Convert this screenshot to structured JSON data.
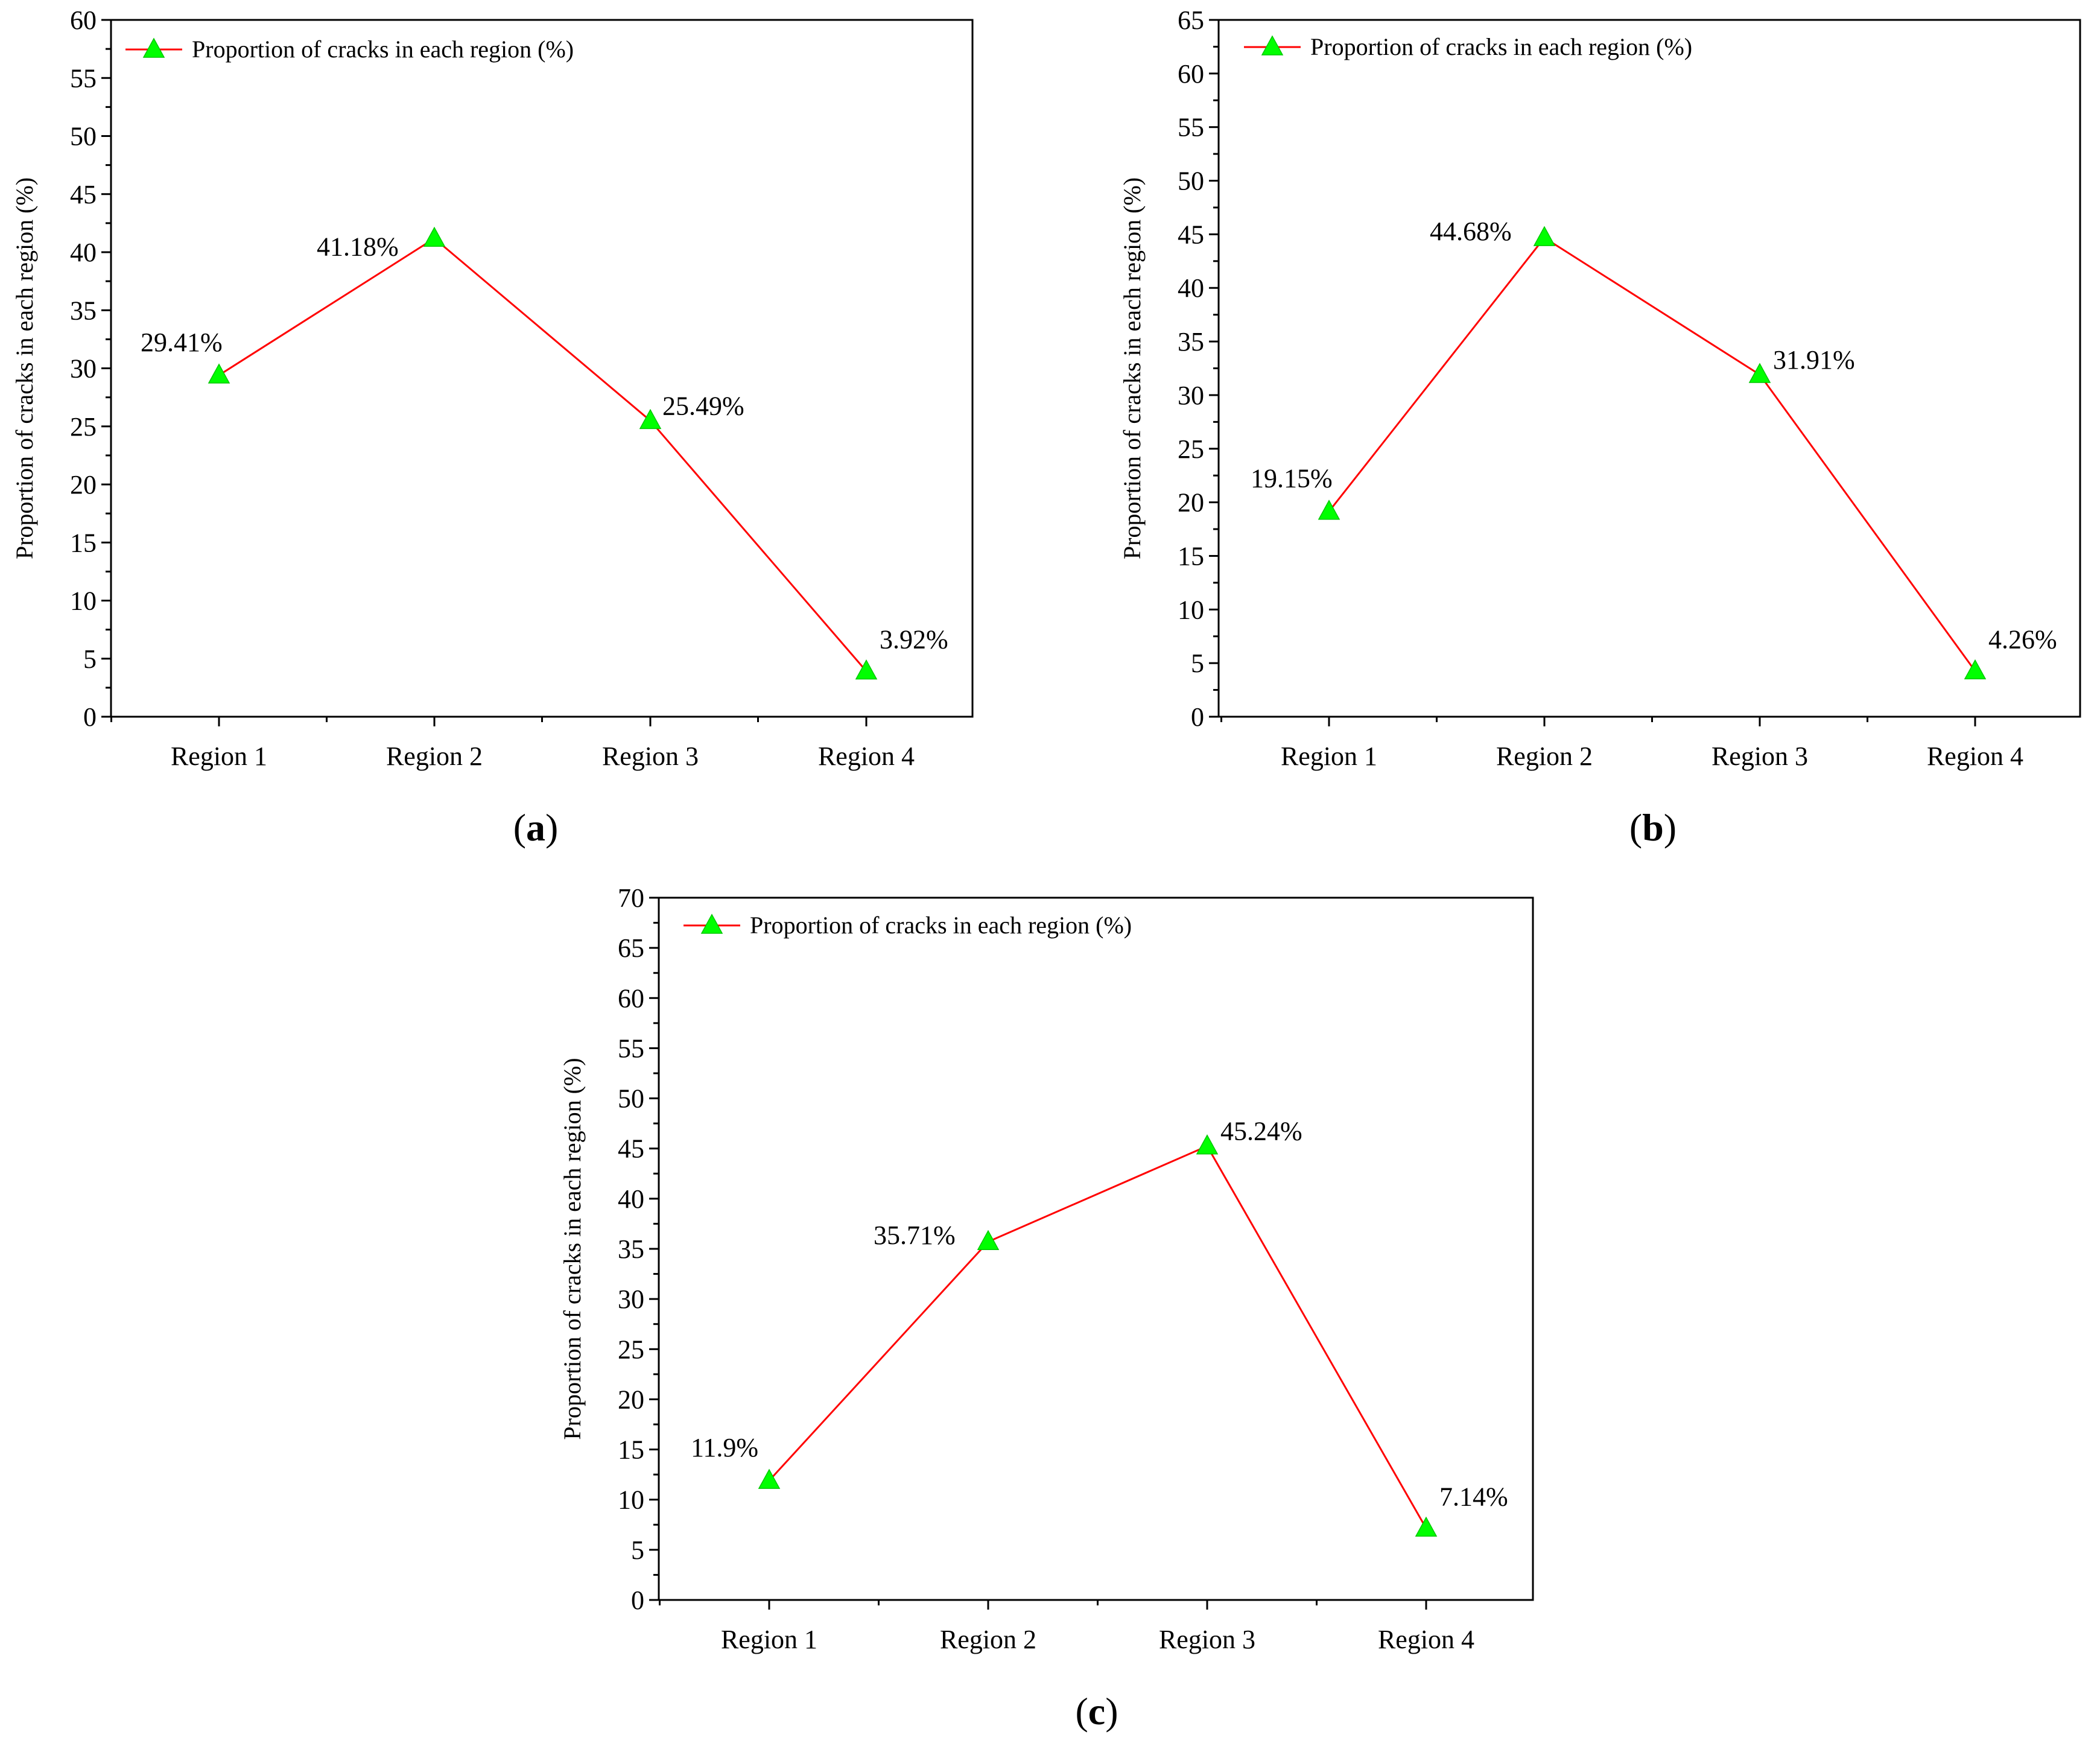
{
  "style": {
    "line_color": "#ff0000",
    "marker_color": "#00ff00",
    "axis_color": "#000000"
  },
  "chart_data": [
    {
      "panel": "a",
      "type": "line",
      "categories": [
        "Region 1",
        "Region 2",
        "Region 3",
        "Region 4"
      ],
      "series": [
        {
          "name": "Proportion of cracks in each region (%)",
          "values": [
            29.41,
            41.18,
            25.49,
            3.92
          ],
          "labels": [
            "29.41%",
            "41.18%",
            "25.49%",
            "3.92%"
          ]
        }
      ],
      "ylabel": "Proportion of cracks in each region (%)",
      "xlabel": "",
      "ylim": [
        0,
        60
      ],
      "yticks": [
        0,
        5,
        10,
        15,
        20,
        25,
        30,
        35,
        40,
        45,
        50,
        55,
        60
      ],
      "legend": "top-left",
      "grid": false
    },
    {
      "panel": "b",
      "type": "line",
      "categories": [
        "Region 1",
        "Region 2",
        "Region 3",
        "Region 4"
      ],
      "series": [
        {
          "name": "Proportion of cracks in each region (%)",
          "values": [
            19.15,
            44.68,
            31.91,
            4.26
          ],
          "labels": [
            "19.15%",
            "44.68%",
            "31.91%",
            "4.26%"
          ]
        }
      ],
      "ylabel": "Proportion of cracks in each region (%)",
      "xlabel": "",
      "ylim": [
        0,
        65
      ],
      "yticks": [
        0,
        5,
        10,
        15,
        20,
        25,
        30,
        35,
        40,
        45,
        50,
        55,
        60,
        65
      ],
      "legend": "top-left",
      "grid": false
    },
    {
      "panel": "c",
      "type": "line",
      "categories": [
        "Region 1",
        "Region 2",
        "Region 3",
        "Region 4"
      ],
      "series": [
        {
          "name": "Proportion of cracks in each region (%)",
          "values": [
            11.9,
            35.71,
            45.24,
            7.14
          ],
          "labels": [
            "11.9%",
            "35.71%",
            "45.24%",
            "7.14%"
          ]
        }
      ],
      "ylabel": "Proportion of cracks in each region (%)",
      "xlabel": "",
      "ylim": [
        0,
        70
      ],
      "yticks": [
        0,
        5,
        10,
        15,
        20,
        25,
        30,
        35,
        40,
        45,
        50,
        55,
        60,
        65,
        70
      ],
      "legend": "top-left",
      "grid": false
    }
  ],
  "panel_labels": {
    "a": {
      "open": "(",
      "letter": "a",
      "close": ")"
    },
    "b": {
      "open": "(",
      "letter": "b",
      "close": ")"
    },
    "c": {
      "open": "(",
      "letter": "c",
      "close": ")"
    }
  }
}
